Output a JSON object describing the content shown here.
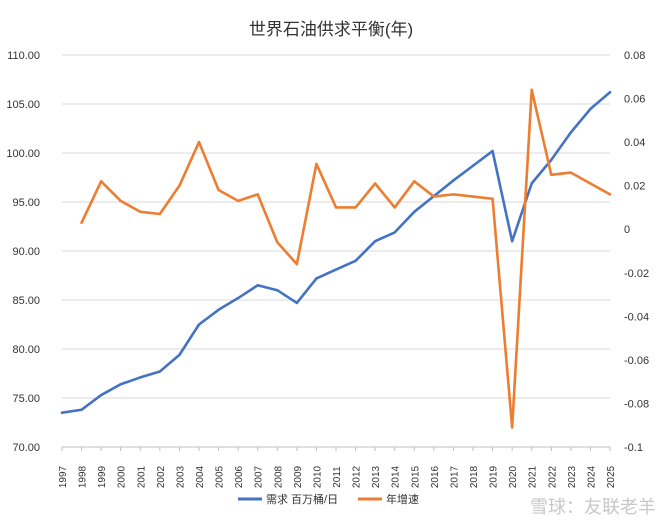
{
  "chart_data": {
    "type": "line",
    "title": "世界石油供求平衡(年)",
    "x": [
      "1997",
      "1998",
      "1999",
      "2000",
      "2001",
      "2002",
      "2003",
      "2004",
      "2005",
      "2006",
      "2007",
      "2008",
      "2009",
      "2010",
      "2011",
      "2012",
      "2013",
      "2014",
      "2015",
      "2016",
      "2017",
      "2018",
      "2019",
      "2020",
      "2021",
      "2022",
      "2023",
      "2024",
      "2025"
    ],
    "y_left_ticks": [
      "110.00",
      "105.00",
      "100.00",
      "95.00",
      "90.00",
      "85.00",
      "80.00",
      "75.00",
      "70.00"
    ],
    "y_right_ticks": [
      "0.08",
      "0.06",
      "0.04",
      "0.02",
      "0",
      "-0.02",
      "-0.04",
      "-0.06",
      "-0.08",
      "-0.1"
    ],
    "ylim_left": [
      70,
      110
    ],
    "ylim_right": [
      -0.1,
      0.08
    ],
    "grid": true,
    "legend_position": "bottom",
    "series": [
      {
        "name": "需求 百万桶/日",
        "axis": "left",
        "color": "#4472C4",
        "values": [
          73.5,
          73.8,
          75.3,
          76.4,
          77.1,
          77.7,
          79.4,
          82.5,
          84.0,
          85.2,
          86.5,
          86.0,
          84.7,
          87.2,
          88.1,
          89.0,
          91.0,
          91.9,
          94.0,
          95.6,
          97.2,
          98.7,
          100.2,
          91.0,
          96.9,
          99.3,
          102.1,
          104.5,
          106.2
        ]
      },
      {
        "name": "年增速",
        "axis": "right",
        "color": "#ED7D31",
        "values": [
          null,
          0.003,
          0.022,
          0.013,
          0.008,
          0.007,
          0.02,
          0.04,
          0.018,
          0.013,
          0.016,
          -0.006,
          -0.016,
          0.03,
          0.01,
          0.01,
          0.021,
          0.01,
          0.022,
          0.015,
          0.016,
          0.015,
          0.014,
          -0.091,
          0.064,
          0.025,
          0.026,
          0.021,
          0.016
        ]
      }
    ]
  },
  "watermark": "雪球：友联老羊"
}
